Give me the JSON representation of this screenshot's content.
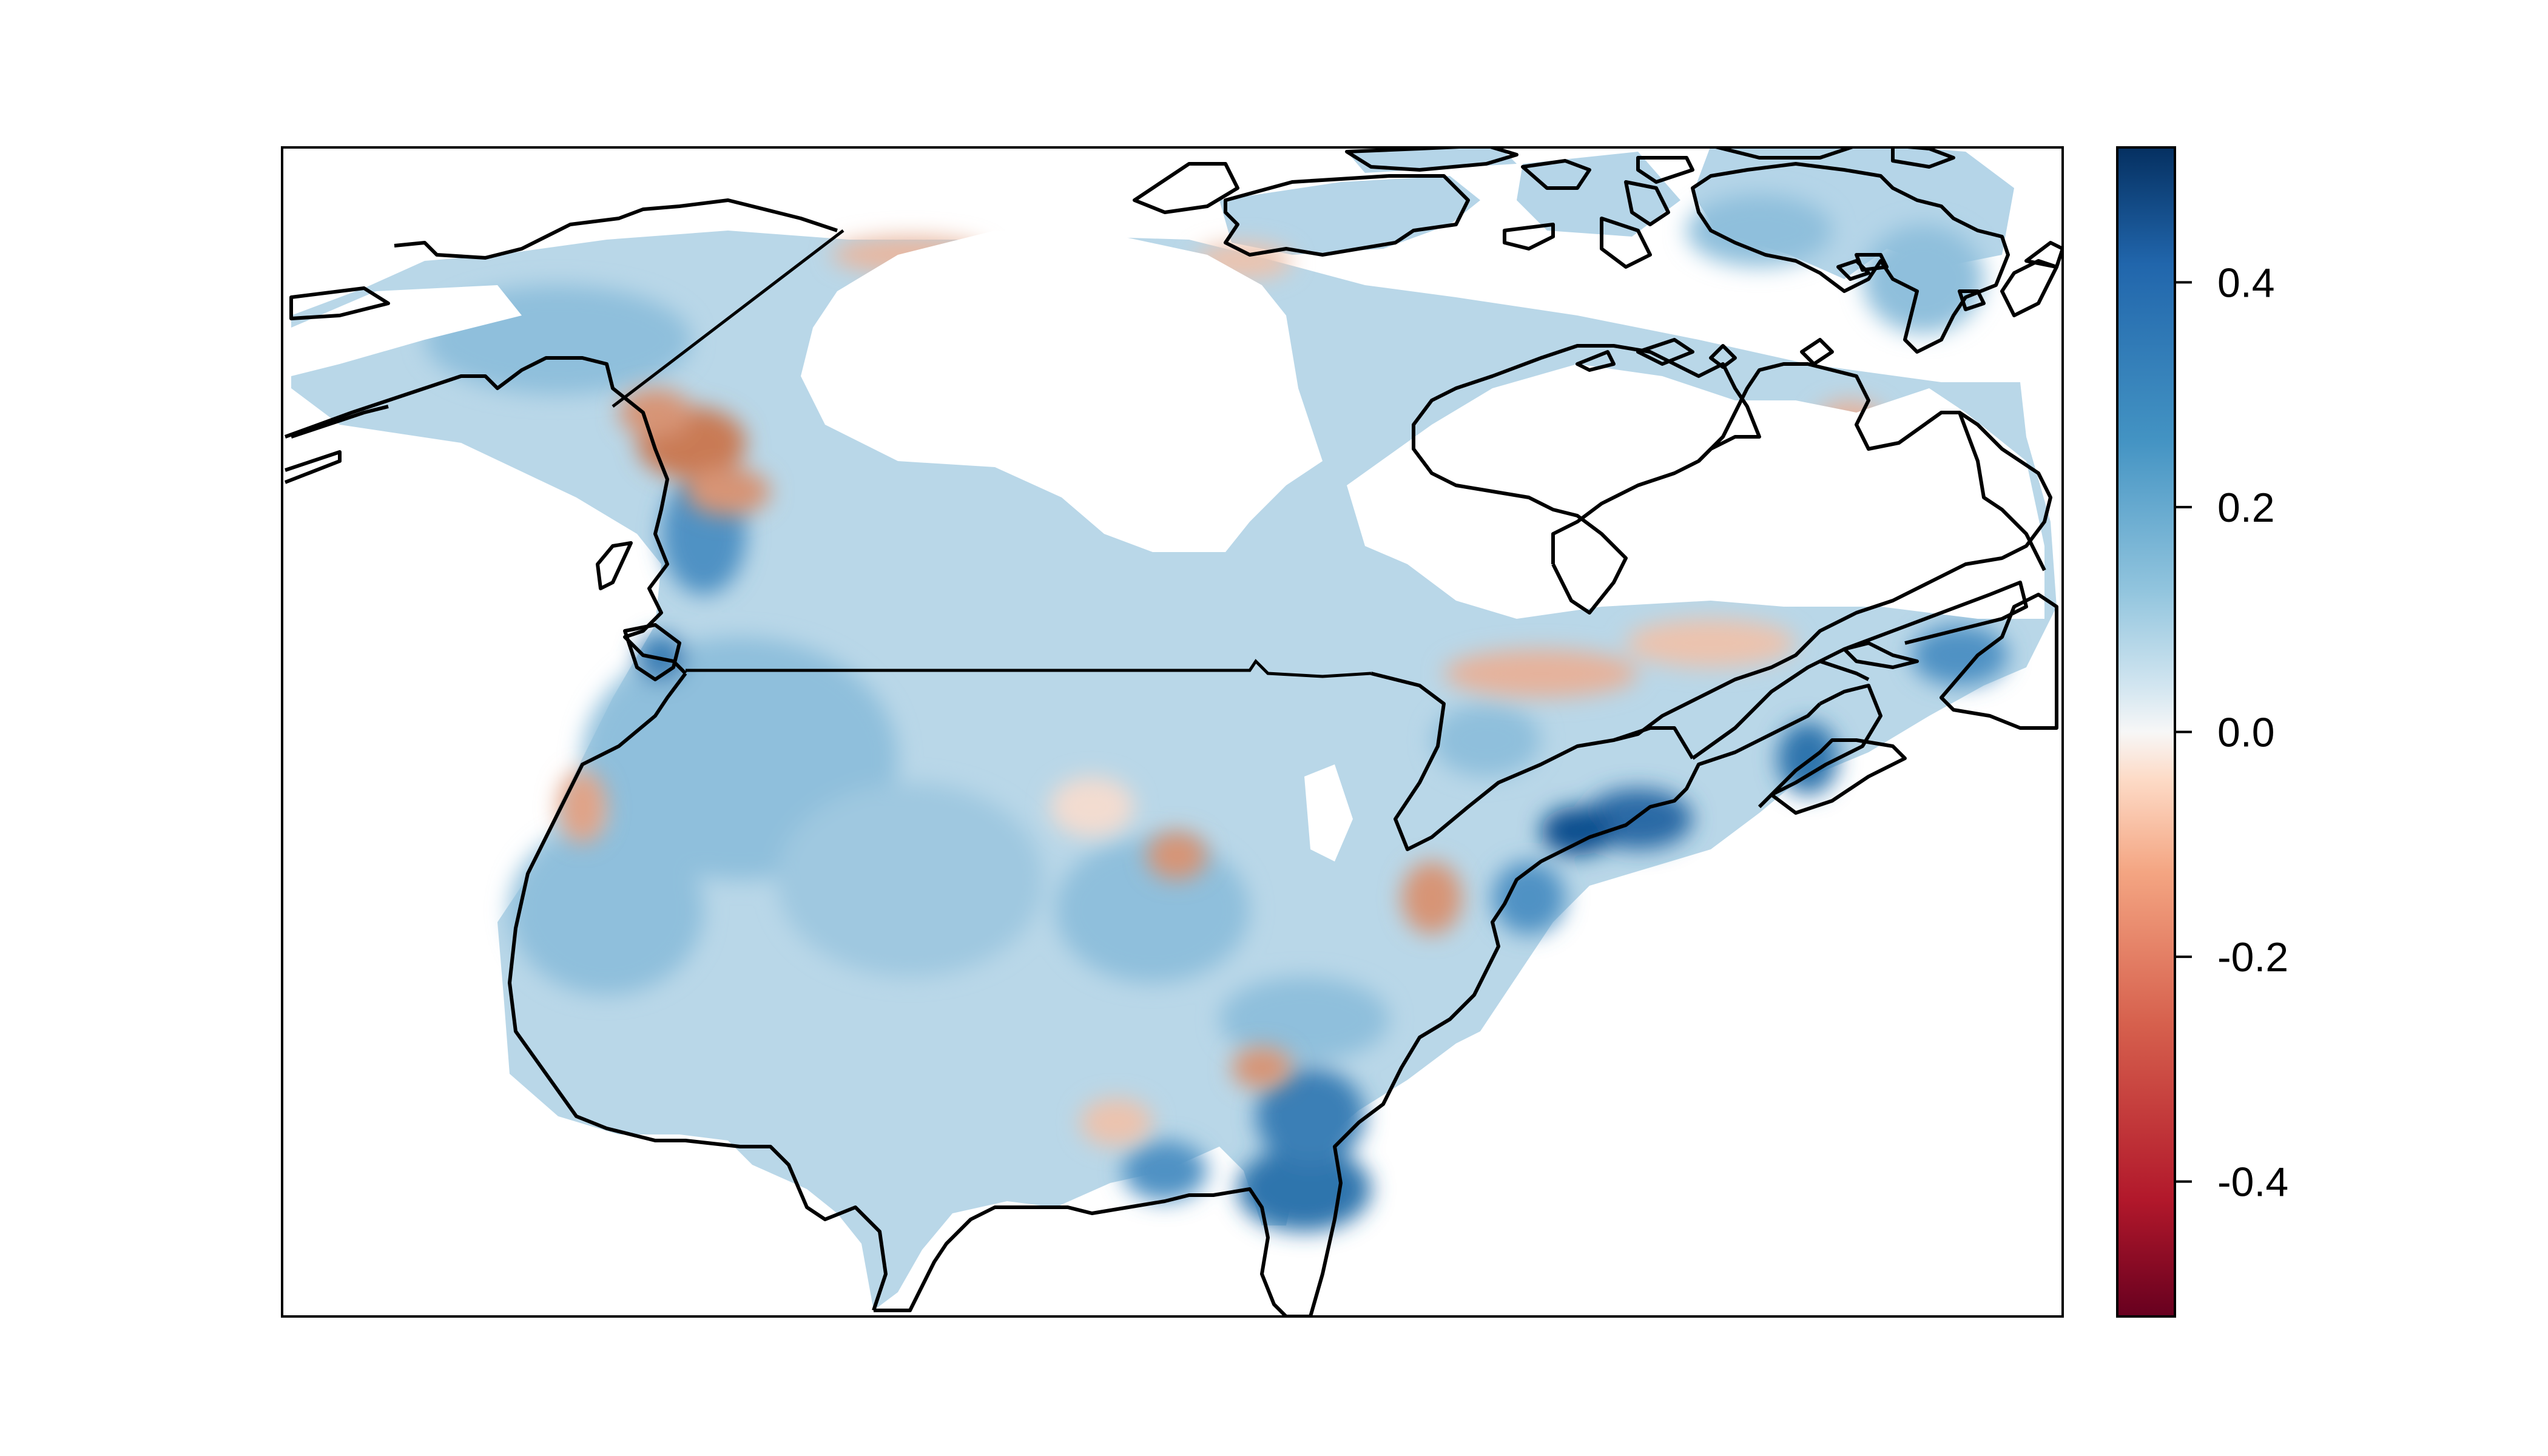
{
  "legend": {
    "ticks": [
      {
        "value": 0.4,
        "label": "0.4"
      },
      {
        "value": 0.2,
        "label": "0.2"
      },
      {
        "value": 0.0,
        "label": "0.0"
      },
      {
        "value": -0.2,
        "label": "-0.2"
      },
      {
        "value": -0.4,
        "label": "-0.4"
      }
    ],
    "range": [
      -0.52,
      0.52
    ],
    "palette": [
      "#67001f",
      "#b2182b",
      "#d6604d",
      "#f4a582",
      "#fddbc7",
      "#f7f7f7",
      "#d1e5f0",
      "#92c5de",
      "#4393c3",
      "#2166ac",
      "#053061"
    ]
  },
  "colors": {
    "land_base": "#b9d7e8",
    "blue_mid": "#8fbfdc",
    "blue_dark": "#3a7fb6",
    "blue_darkest": "#0f4f8f",
    "red_light": "#e8b7a0",
    "red_mid": "#c97a55",
    "ice_mask": "#ffffff",
    "outline": "#000000"
  },
  "map": {
    "grid": false,
    "legend_placement": "right"
  }
}
